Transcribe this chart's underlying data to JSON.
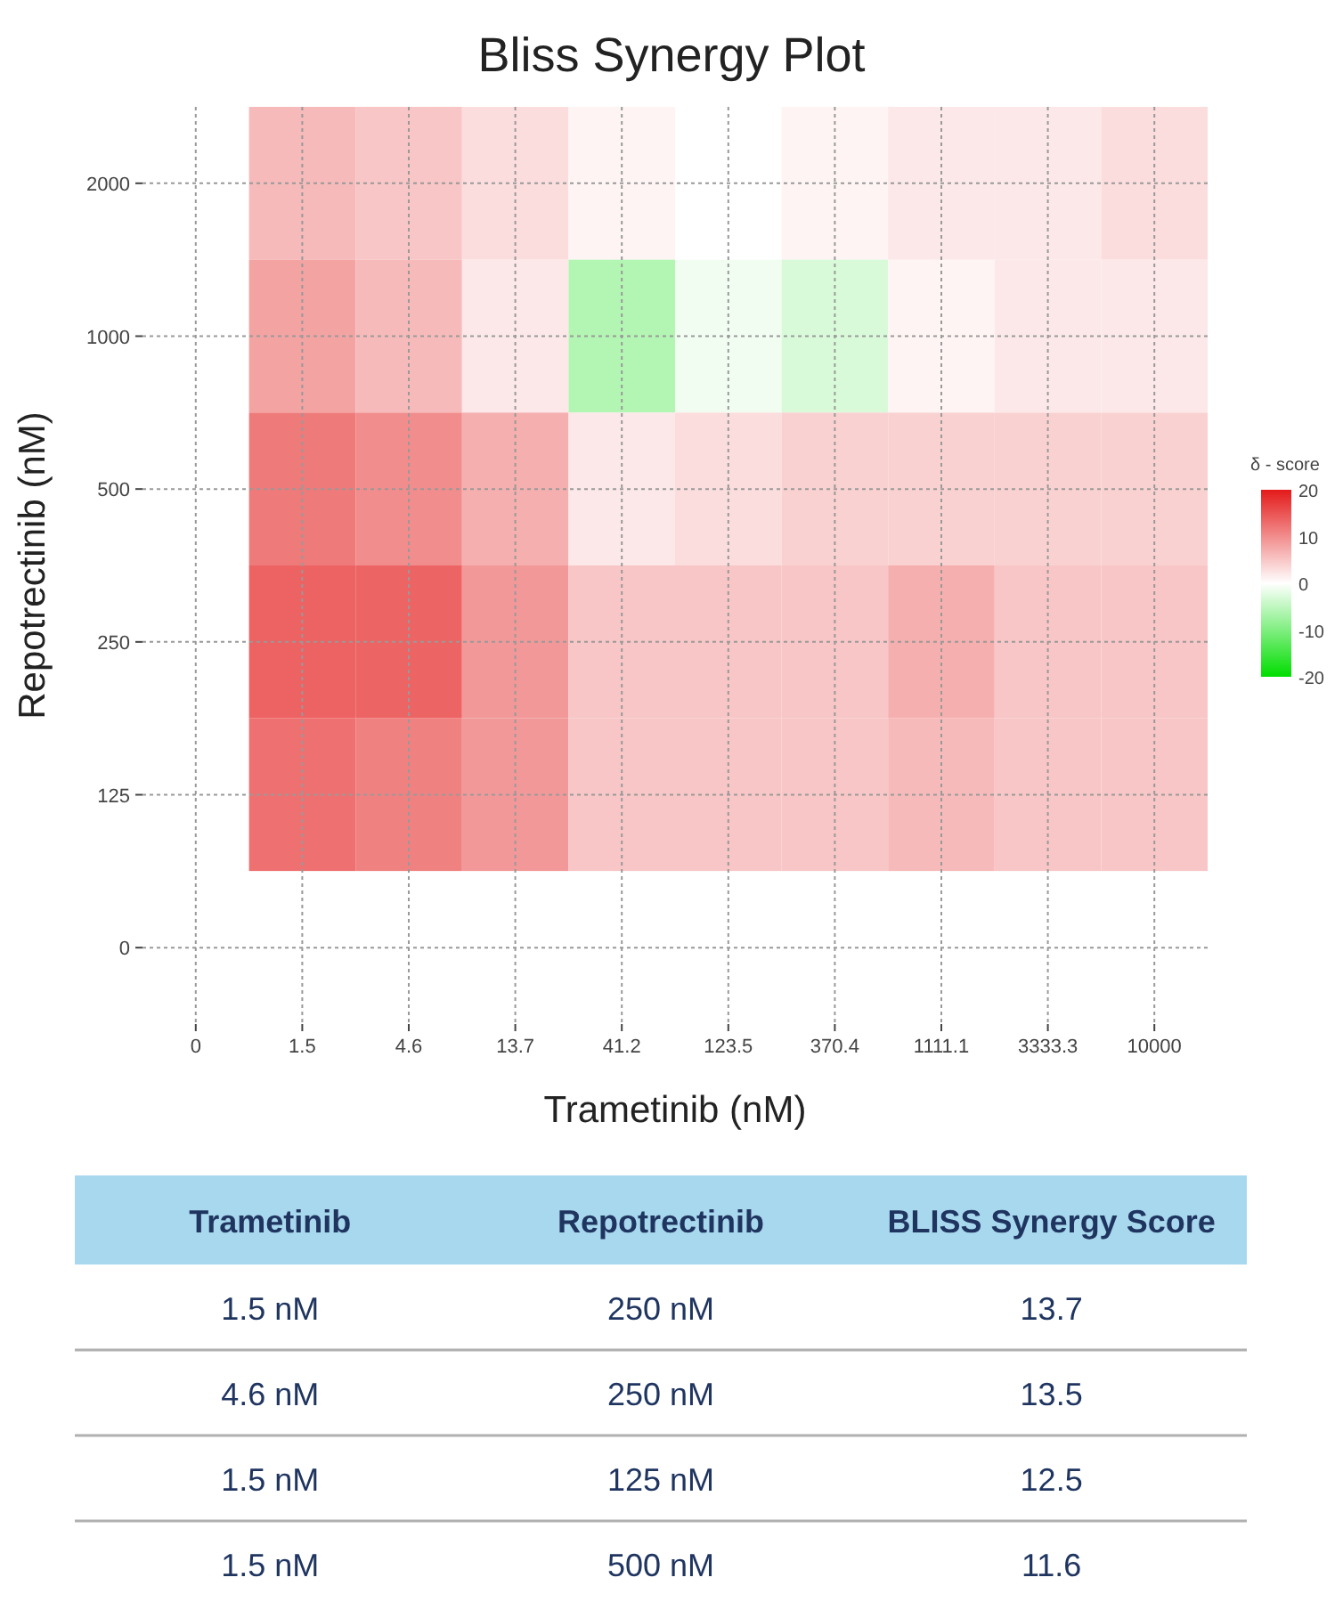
{
  "chart_data": [
    {
      "type": "heatmap",
      "title": "Bliss Synergy Plot",
      "xlabel": "Trametinib (nM)",
      "ylabel": "Repotrectinib (nM)",
      "clabel": "δ - score",
      "categories": [
        "0",
        "1.5",
        "4.6",
        "13.7",
        "41.2",
        "123.5",
        "370.4",
        "1111.1",
        "3333.3",
        "10000"
      ],
      "y_categories": [
        "2000",
        "1000",
        "500",
        "250",
        "125",
        "0"
      ],
      "cells": [
        [
          0,
          6,
          5,
          3,
          1,
          0,
          1,
          2,
          2,
          3
        ],
        [
          0,
          8,
          6,
          2,
          -6,
          -1,
          -3,
          1,
          2,
          2
        ],
        [
          0,
          11.6,
          10,
          7,
          2,
          3,
          4,
          4,
          4,
          4
        ],
        [
          0,
          13.7,
          13.5,
          9,
          5,
          5,
          5,
          7,
          5,
          5
        ],
        [
          0,
          12.5,
          11,
          9,
          5,
          5,
          5,
          6,
          5,
          5
        ],
        [
          0,
          0,
          0,
          0,
          0,
          0,
          0,
          0,
          0,
          0
        ]
      ],
      "clim": [
        -20,
        20
      ],
      "cticks": [
        -20,
        -10,
        0,
        10,
        20
      ],
      "grid": true
    },
    {
      "type": "other",
      "categories": [
        "Trametinib",
        "Repotrectinib",
        "BLISS Synergy Score"
      ],
      "annotations": [
        "1.5 nM",
        "250 nM",
        "13.7",
        "4.6 nM",
        "250 nM",
        "13.5",
        "1.5 nM",
        "125 nM",
        "12.5",
        "1.5 nM",
        "500 nM",
        "11.6"
      ]
    }
  ]
}
